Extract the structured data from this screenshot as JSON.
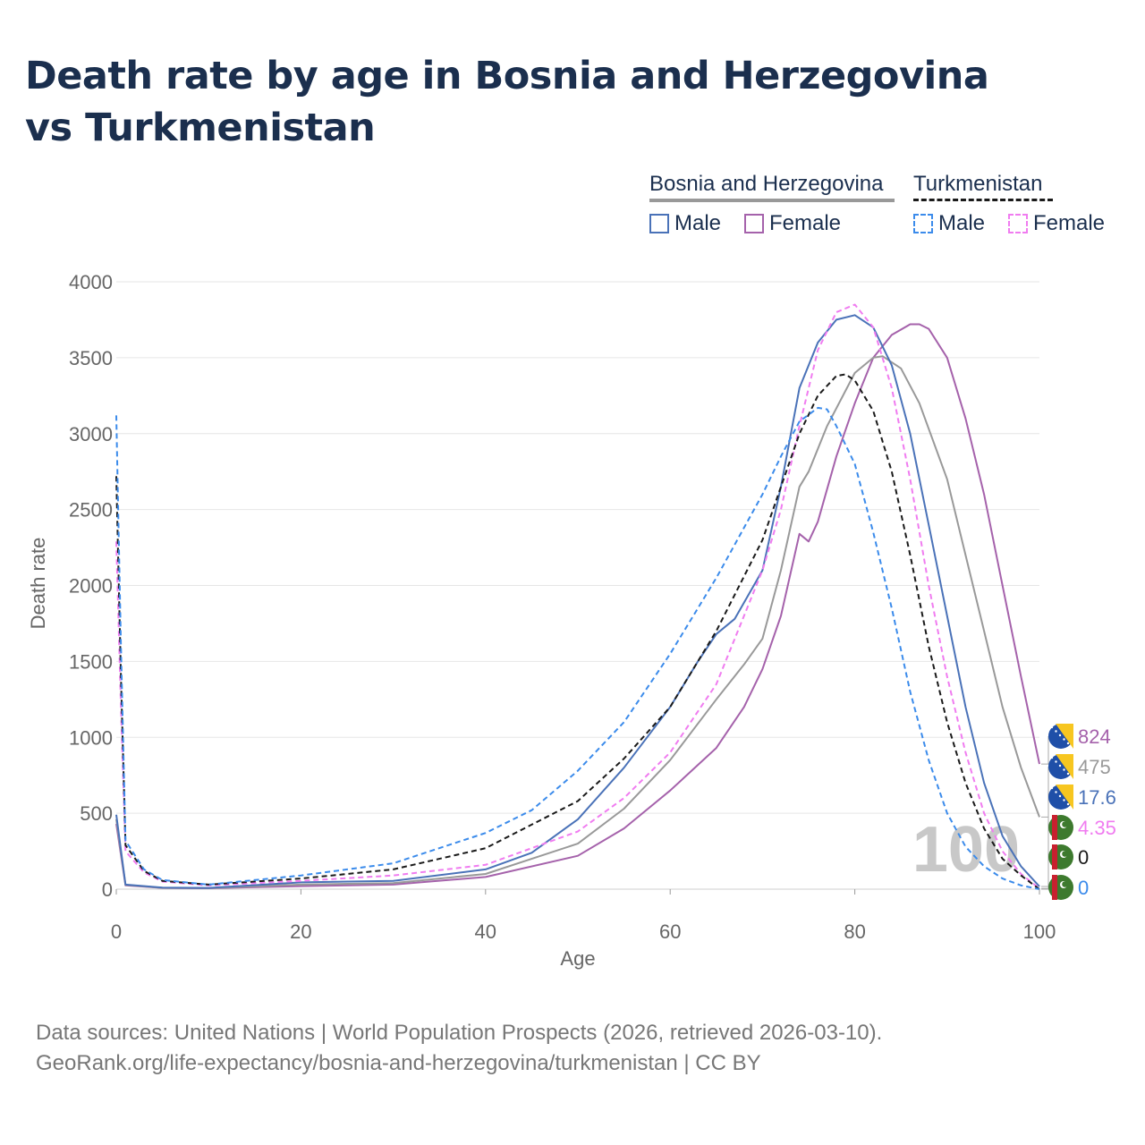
{
  "title": "Death rate by age in Bosnia and Herzegovina vs Turkmenistan",
  "legend": {
    "groups": [
      {
        "name": "Bosnia and Herzegovina",
        "items": [
          {
            "label": "Male",
            "color": "#4a72b8"
          },
          {
            "label": "Female",
            "color": "#a562ab"
          }
        ]
      },
      {
        "name": "Turkmenistan",
        "items": [
          {
            "label": "Male",
            "color": "#3b8beb"
          },
          {
            "label": "Female",
            "color": "#f07cf0"
          }
        ]
      }
    ]
  },
  "footer": {
    "line1": "Data sources: United Nations | World Population Prospects (2026, retrieved 2026-03-10).",
    "line2": "GeoRank.org/life-expectancy/bosnia-and-herzegovina/turkmenistan | CC BY"
  },
  "chart_data": {
    "type": "line",
    "title": "Death rate by age in Bosnia and Herzegovina vs Turkmenistan",
    "xlabel": "Age",
    "ylabel": "Death rate",
    "xlim": [
      0,
      100
    ],
    "ylim": [
      0,
      4000
    ],
    "xticks": [
      0,
      20,
      40,
      60,
      80,
      100
    ],
    "yticks": [
      0,
      500,
      1000,
      1500,
      2000,
      2500,
      3000,
      3500,
      4000
    ],
    "overlay_label": "100",
    "series": [
      {
        "name": "Bosnia and Herzegovina Female",
        "color": "#a562ab",
        "dash": false,
        "end_label": "824",
        "flag": "bosnia",
        "points": [
          [
            0,
            430
          ],
          [
            1,
            25
          ],
          [
            5,
            8
          ],
          [
            10,
            6
          ],
          [
            20,
            20
          ],
          [
            30,
            30
          ],
          [
            40,
            80
          ],
          [
            50,
            220
          ],
          [
            55,
            400
          ],
          [
            60,
            650
          ],
          [
            65,
            930
          ],
          [
            68,
            1200
          ],
          [
            70,
            1450
          ],
          [
            72,
            1800
          ],
          [
            74,
            2340
          ],
          [
            75,
            2290
          ],
          [
            76,
            2420
          ],
          [
            78,
            2850
          ],
          [
            80,
            3200
          ],
          [
            82,
            3500
          ],
          [
            84,
            3650
          ],
          [
            86,
            3720
          ],
          [
            87,
            3720
          ],
          [
            88,
            3690
          ],
          [
            90,
            3500
          ],
          [
            92,
            3100
          ],
          [
            94,
            2600
          ],
          [
            96,
            2000
          ],
          [
            98,
            1400
          ],
          [
            100,
            824
          ]
        ]
      },
      {
        "name": "Both sexes (Bosnia and Herzegovina)",
        "color": "#999999",
        "dash": false,
        "end_label": "475",
        "flag": "bosnia",
        "points": [
          [
            0,
            460
          ],
          [
            1,
            28
          ],
          [
            5,
            9
          ],
          [
            10,
            7
          ],
          [
            20,
            30
          ],
          [
            30,
            40
          ],
          [
            40,
            100
          ],
          [
            50,
            300
          ],
          [
            55,
            530
          ],
          [
            60,
            850
          ],
          [
            65,
            1250
          ],
          [
            68,
            1480
          ],
          [
            70,
            1650
          ],
          [
            72,
            2100
          ],
          [
            74,
            2650
          ],
          [
            75,
            2750
          ],
          [
            77,
            3050
          ],
          [
            80,
            3400
          ],
          [
            82,
            3500
          ],
          [
            83,
            3510
          ],
          [
            85,
            3430
          ],
          [
            87,
            3200
          ],
          [
            90,
            2700
          ],
          [
            92,
            2200
          ],
          [
            94,
            1700
          ],
          [
            96,
            1200
          ],
          [
            98,
            800
          ],
          [
            100,
            475
          ]
        ]
      },
      {
        "name": "Bosnia and Herzegovina Male",
        "color": "#4a72b8",
        "dash": false,
        "end_label": "17.6",
        "flag": "bosnia",
        "points": [
          [
            0,
            490
          ],
          [
            1,
            30
          ],
          [
            5,
            10
          ],
          [
            10,
            8
          ],
          [
            20,
            45
          ],
          [
            30,
            55
          ],
          [
            40,
            130
          ],
          [
            45,
            240
          ],
          [
            50,
            460
          ],
          [
            55,
            800
          ],
          [
            60,
            1200
          ],
          [
            63,
            1500
          ],
          [
            65,
            1680
          ],
          [
            67,
            1780
          ],
          [
            70,
            2100
          ],
          [
            72,
            2650
          ],
          [
            74,
            3300
          ],
          [
            76,
            3600
          ],
          [
            78,
            3750
          ],
          [
            80,
            3780
          ],
          [
            82,
            3700
          ],
          [
            84,
            3450
          ],
          [
            86,
            3000
          ],
          [
            88,
            2400
          ],
          [
            90,
            1800
          ],
          [
            92,
            1200
          ],
          [
            94,
            700
          ],
          [
            96,
            350
          ],
          [
            98,
            150
          ],
          [
            100,
            17.6
          ]
        ]
      },
      {
        "name": "Turkmenistan Female",
        "color": "#f07cf0",
        "dash": true,
        "end_label": "4.35",
        "flag": "turkmenistan",
        "points": [
          [
            0,
            2290
          ],
          [
            0.5,
            1200
          ],
          [
            1,
            250
          ],
          [
            3,
            110
          ],
          [
            5,
            50
          ],
          [
            10,
            25
          ],
          [
            20,
            55
          ],
          [
            30,
            90
          ],
          [
            40,
            160
          ],
          [
            50,
            380
          ],
          [
            55,
            600
          ],
          [
            60,
            900
          ],
          [
            65,
            1350
          ],
          [
            70,
            2100
          ],
          [
            72,
            2500
          ],
          [
            74,
            3050
          ],
          [
            76,
            3550
          ],
          [
            78,
            3800
          ],
          [
            80,
            3850
          ],
          [
            82,
            3700
          ],
          [
            84,
            3300
          ],
          [
            86,
            2700
          ],
          [
            88,
            2000
          ],
          [
            90,
            1400
          ],
          [
            92,
            900
          ],
          [
            94,
            500
          ],
          [
            96,
            250
          ],
          [
            98,
            100
          ],
          [
            100,
            4.35
          ]
        ]
      },
      {
        "name": "Both sexes (Turkmenistan)",
        "color": "#1a1a1a",
        "dash": true,
        "end_label": "0",
        "flag": "turkmenistan",
        "points": [
          [
            0,
            2720
          ],
          [
            0.5,
            1400
          ],
          [
            1,
            290
          ],
          [
            3,
            120
          ],
          [
            5,
            55
          ],
          [
            10,
            30
          ],
          [
            20,
            70
          ],
          [
            30,
            130
          ],
          [
            40,
            270
          ],
          [
            50,
            580
          ],
          [
            55,
            860
          ],
          [
            60,
            1200
          ],
          [
            65,
            1700
          ],
          [
            70,
            2300
          ],
          [
            72,
            2650
          ],
          [
            74,
            3000
          ],
          [
            76,
            3250
          ],
          [
            78,
            3380
          ],
          [
            79,
            3390
          ],
          [
            80,
            3350
          ],
          [
            82,
            3150
          ],
          [
            84,
            2750
          ],
          [
            86,
            2200
          ],
          [
            88,
            1600
          ],
          [
            90,
            1100
          ],
          [
            92,
            700
          ],
          [
            94,
            400
          ],
          [
            96,
            200
          ],
          [
            98,
            90
          ],
          [
            100,
            0
          ]
        ]
      },
      {
        "name": "Turkmenistan Male",
        "color": "#3b8beb",
        "dash": true,
        "end_label": "0",
        "flag": "turkmenistan",
        "points": [
          [
            0,
            3120
          ],
          [
            0.5,
            1600
          ],
          [
            1,
            320
          ],
          [
            3,
            130
          ],
          [
            5,
            60
          ],
          [
            10,
            30
          ],
          [
            20,
            90
          ],
          [
            30,
            170
          ],
          [
            40,
            370
          ],
          [
            45,
            520
          ],
          [
            50,
            780
          ],
          [
            55,
            1100
          ],
          [
            60,
            1550
          ],
          [
            65,
            2050
          ],
          [
            70,
            2600
          ],
          [
            72,
            2850
          ],
          [
            74,
            3080
          ],
          [
            76,
            3170
          ],
          [
            77,
            3160
          ],
          [
            78,
            3050
          ],
          [
            80,
            2800
          ],
          [
            82,
            2350
          ],
          [
            84,
            1850
          ],
          [
            86,
            1300
          ],
          [
            88,
            850
          ],
          [
            90,
            500
          ],
          [
            92,
            280
          ],
          [
            94,
            150
          ],
          [
            96,
            70
          ],
          [
            98,
            25
          ],
          [
            100,
            0
          ]
        ]
      }
    ]
  }
}
